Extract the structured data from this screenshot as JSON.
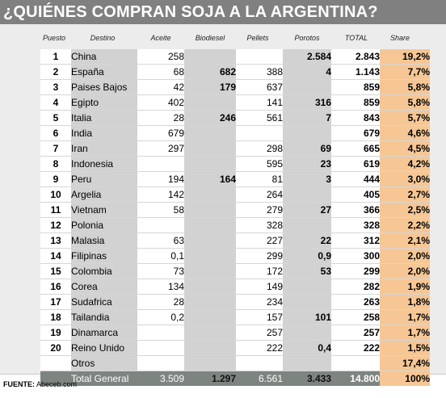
{
  "title": "¿QUIÉNES COMPRAN SOJA A LA ARGENTINA?",
  "headers": {
    "puesto": "Puesto",
    "destino": "Destino",
    "aceite": "Aceite",
    "biodiesel": "Biodiesel",
    "pellets": "Pellets",
    "porotos": "Porotos",
    "total": "TOTAL",
    "share": "Share"
  },
  "rows": [
    {
      "puesto": "1",
      "destino": "China",
      "aceite": "258",
      "biodiesel": "",
      "pellets": "",
      "porotos": "2.584",
      "total": "2.843",
      "share": "19,2%"
    },
    {
      "puesto": "2",
      "destino": "España",
      "aceite": "68",
      "biodiesel": "682",
      "pellets": "388",
      "porotos": "4",
      "total": "1.143",
      "share": "7,7%"
    },
    {
      "puesto": "3",
      "destino": "Paises Bajos",
      "aceite": "42",
      "biodiesel": "179",
      "pellets": "637",
      "porotos": "",
      "total": "859",
      "share": "5,8%"
    },
    {
      "puesto": "4",
      "destino": "Egipto",
      "aceite": "402",
      "biodiesel": "",
      "pellets": "141",
      "porotos": "316",
      "total": "859",
      "share": "5,8%"
    },
    {
      "puesto": "5",
      "destino": "Italia",
      "aceite": "28",
      "biodiesel": "246",
      "pellets": "561",
      "porotos": "7",
      "total": "843",
      "share": "5,7%"
    },
    {
      "puesto": "6",
      "destino": "India",
      "aceite": "679",
      "biodiesel": "",
      "pellets": "",
      "porotos": "",
      "total": "679",
      "share": "4,6%"
    },
    {
      "puesto": "7",
      "destino": "Iran",
      "aceite": "297",
      "biodiesel": "",
      "pellets": "298",
      "porotos": "69",
      "total": "665",
      "share": "4,5%"
    },
    {
      "puesto": "8",
      "destino": "Indonesia",
      "aceite": "",
      "biodiesel": "",
      "pellets": "595",
      "porotos": "23",
      "total": "619",
      "share": "4,2%"
    },
    {
      "puesto": "9",
      "destino": "Peru",
      "aceite": "194",
      "biodiesel": "164",
      "pellets": "81",
      "porotos": "3",
      "total": "444",
      "share": "3,0%"
    },
    {
      "puesto": "10",
      "destino": "Argelia",
      "aceite": "142",
      "biodiesel": "",
      "pellets": "264",
      "porotos": "",
      "total": "405",
      "share": "2,7%"
    },
    {
      "puesto": "11",
      "destino": "Vietnam",
      "aceite": "58",
      "biodiesel": "",
      "pellets": "279",
      "porotos": "27",
      "total": "366",
      "share": "2,5%"
    },
    {
      "puesto": "12",
      "destino": "Polonia",
      "aceite": "",
      "biodiesel": "",
      "pellets": "328",
      "porotos": "",
      "total": "328",
      "share": "2,2%"
    },
    {
      "puesto": "13",
      "destino": "Malasia",
      "aceite": "63",
      "biodiesel": "",
      "pellets": "227",
      "porotos": "22",
      "total": "312",
      "share": "2,1%"
    },
    {
      "puesto": "14",
      "destino": "Filipinas",
      "aceite": "0,1",
      "biodiesel": "",
      "pellets": "299",
      "porotos": "0,9",
      "total": "300",
      "share": "2,0%"
    },
    {
      "puesto": "15",
      "destino": "Colombia",
      "aceite": "73",
      "biodiesel": "",
      "pellets": "172",
      "porotos": "53",
      "total": "299",
      "share": "2,0%"
    },
    {
      "puesto": "16",
      "destino": "Corea",
      "aceite": "134",
      "biodiesel": "",
      "pellets": "149",
      "porotos": "",
      "total": "282",
      "share": "1,9%"
    },
    {
      "puesto": "17",
      "destino": "Sudafrica",
      "aceite": "28",
      "biodiesel": "",
      "pellets": "234",
      "porotos": "",
      "total": "263",
      "share": "1,8%"
    },
    {
      "puesto": "18",
      "destino": "Tailandia",
      "aceite": "0,2",
      "biodiesel": "",
      "pellets": "157",
      "porotos": "101",
      "total": "258",
      "share": "1,7%"
    },
    {
      "puesto": "19",
      "destino": "Dinamarca",
      "aceite": "",
      "biodiesel": "",
      "pellets": "257",
      "porotos": "",
      "total": "257",
      "share": "1,7%"
    },
    {
      "puesto": "20",
      "destino": "Reino Unido",
      "aceite": "",
      "biodiesel": "",
      "pellets": "222",
      "porotos": "0,4",
      "total": "222",
      "share": "1,5%"
    },
    {
      "puesto": "",
      "destino": "Otros",
      "aceite": "",
      "biodiesel": "",
      "pellets": "",
      "porotos": "",
      "total": "",
      "share": "17,4%"
    }
  ],
  "total_row": {
    "destino": "Total General",
    "aceite": "3.509",
    "biodiesel": "1.297",
    "pellets": "6.561",
    "porotos": "3.433",
    "total": "14.800",
    "share": "100%"
  },
  "source": {
    "label": "FUENTE:",
    "value": "Abeceb.com"
  }
}
